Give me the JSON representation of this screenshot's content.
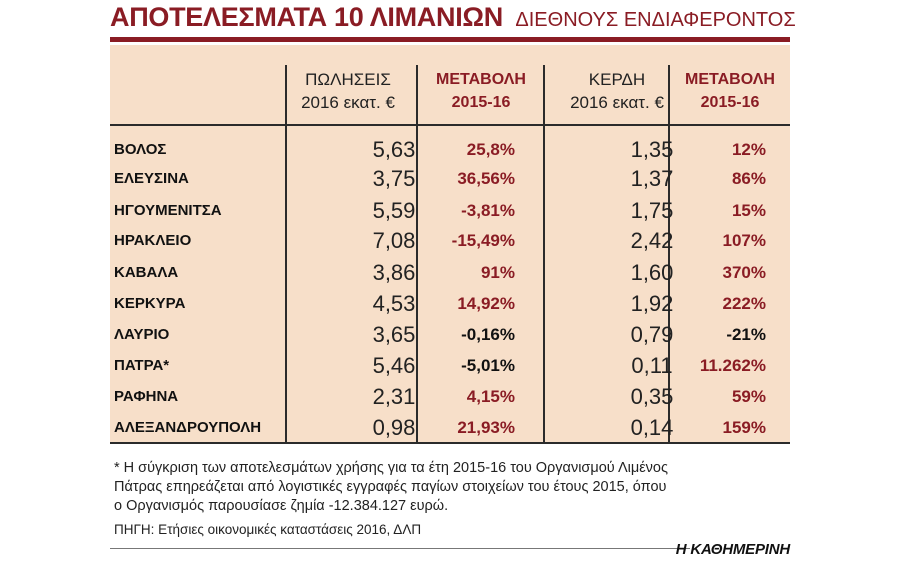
{
  "title": {
    "main": "ΑΠΟΤΕΛΕΣΜΑΤΑ 10 ΛΙΜΑΝΙΩΝ",
    "sub": "ΔΙΕΘΝΟΥΣ ΕΝΔΙΑΦΕΡΟΝΤΟΣ"
  },
  "columns": {
    "sales": [
      "ΠΩΛΗΣΕΙΣ",
      "2016 εκατ. €"
    ],
    "sales_change": [
      "ΜΕΤΑΒΟΛΗ",
      "2015-16"
    ],
    "profit": [
      "ΚΕΡΔΗ",
      "2016 εκατ. €"
    ],
    "profit_change": [
      "ΜΕΤΑΒΟΛΗ",
      "2015-16"
    ]
  },
  "rows": [
    {
      "port": "ΒΟΛΟΣ",
      "sales": "5,63",
      "sales_change": "25,8%",
      "profit": "1,35",
      "profit_change": "12%"
    },
    {
      "port": "ΕΛΕΥΣΙΝΑ",
      "sales": "3,75",
      "sales_change": "36,56%",
      "profit": "1,37",
      "profit_change": "86%"
    },
    {
      "port": "ΗΓΟΥΜΕΝΙΤΣΑ",
      "sales": "5,59",
      "sales_change": "-3,81%",
      "profit": "1,75",
      "profit_change": "15%"
    },
    {
      "port": "ΗΡΑΚΛΕΙΟ",
      "sales": "7,08",
      "sales_change": "-15,49%",
      "profit": "2,42",
      "profit_change": "107%"
    },
    {
      "port": "ΚΑΒΑΛΑ",
      "sales": "3,86",
      "sales_change": "91%",
      "profit": "1,60",
      "profit_change": "370%"
    },
    {
      "port": "ΚΕΡΚΥΡΑ",
      "sales": "4,53",
      "sales_change": "14,92%",
      "profit": "1,92",
      "profit_change": "222%"
    },
    {
      "port": "ΛΑΥΡΙΟ",
      "sales": "3,65",
      "sales_change": "-0,16%",
      "profit": "0,79",
      "profit_change": "-21%"
    },
    {
      "port": "ΠΑΤΡΑ*",
      "sales": "5,46",
      "sales_change": "-5,01%",
      "profit": "0,11",
      "profit_change": "11.262%"
    },
    {
      "port": "ΡΑΦΗΝΑ",
      "sales": "2,31",
      "sales_change": "4,15%",
      "profit": "0,35",
      "profit_change": "59%"
    },
    {
      "port": "ΑΛΕΞΑΝΔΡΟΥΠΟΛΗ",
      "sales": "0,98",
      "sales_change": "21,93%",
      "profit": "0,14",
      "profit_change": "159%"
    }
  ],
  "footnote": [
    "* Η σύγκριση των αποτελεσμάτων χρήσης για τα έτη 2015-16 του Οργανισμού Λιμένος",
    "Πάτρας επηρεάζεται από λογιστικές εγγραφές παγίων στοιχείων του έτους 2015, όπου",
    "ο Οργανισμός παρουσίασε ζημία -12.384.127 ευρώ."
  ],
  "source": "ΠΗΓΗ: Ετήσιες οικονομικές καταστάσεις 2016, ΔΛΠ",
  "brand": "Η ΚΑΘΗΜΕΡΙΝΗ",
  "colors": {
    "accent": "#8a1c24",
    "panel": "#f7dfc9",
    "rule": "#2b2b2b"
  }
}
